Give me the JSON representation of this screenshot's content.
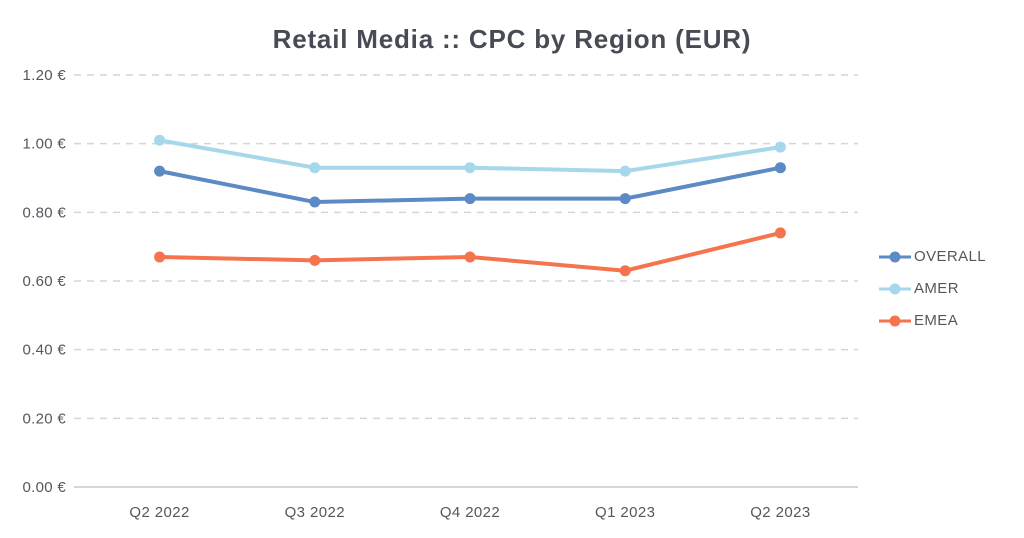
{
  "chart_data": {
    "type": "line",
    "title": "Retail Media :: CPC by Region (EUR)",
    "categories": [
      "Q2 2022",
      "Q3 2022",
      "Q4 2022",
      "Q1 2023",
      "Q2 2023"
    ],
    "series": [
      {
        "name": "OVERALL",
        "color": "#5b8ac5",
        "values": [
          0.92,
          0.83,
          0.84,
          0.84,
          0.93
        ]
      },
      {
        "name": "AMER",
        "color": "#a7d7ea",
        "values": [
          1.01,
          0.93,
          0.93,
          0.92,
          0.99
        ]
      },
      {
        "name": "EMEA",
        "color": "#f5744e",
        "values": [
          0.67,
          0.66,
          0.67,
          0.63,
          0.74
        ]
      }
    ],
    "ylim": [
      0,
      1.2
    ],
    "yticks": [
      {
        "value": 0.0,
        "label": "0.00 €"
      },
      {
        "value": 0.2,
        "label": "0.20 €"
      },
      {
        "value": 0.4,
        "label": "0.40 €"
      },
      {
        "value": 0.6,
        "label": "0.60 €"
      },
      {
        "value": 0.8,
        "label": "0.80 €"
      },
      {
        "value": 1.0,
        "label": "1.00 €"
      },
      {
        "value": 1.2,
        "label": "1.20 €"
      }
    ],
    "grid": "horizontal-dashed",
    "legend_position": "right",
    "axis_text_color": "#54575e",
    "grid_color": "#d6d6d6",
    "baseline_color": "#c9c9c9"
  }
}
